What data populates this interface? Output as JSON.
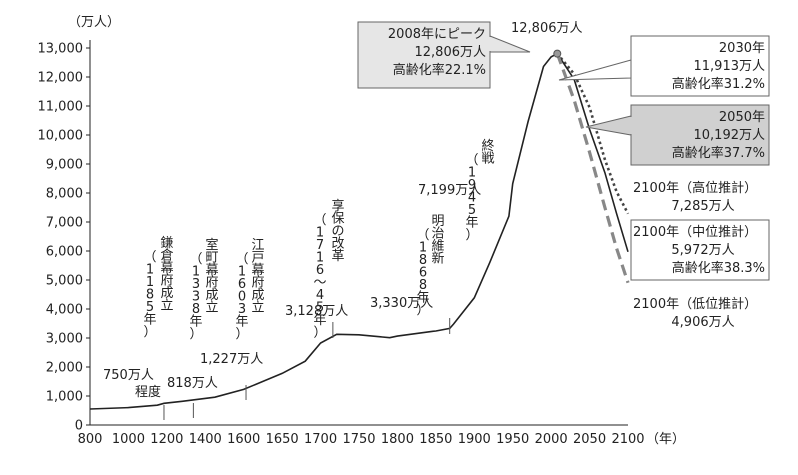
{
  "chart_data": {
    "type": "line",
    "y_unit": "（万人）",
    "x_unit": "（年）",
    "xlim": [
      800,
      2100
    ],
    "ylim": [
      0,
      13000
    ],
    "x_ticks": [
      800,
      1000,
      1200,
      1400,
      1600,
      1650,
      1700,
      1750,
      1800,
      1850,
      1900,
      1950,
      2000,
      2050,
      2100
    ],
    "x_tick_labels": [
      "800",
      "1000",
      "1200",
      "1400",
      "1600",
      "1650",
      "1700",
      "1750",
      "1800",
      "1850",
      "1900",
      "1950",
      "2000",
      "2050",
      "2100"
    ],
    "y_ticks": [
      0,
      1000,
      2000,
      3000,
      4000,
      5000,
      6000,
      7000,
      8000,
      9000,
      10000,
      11000,
      12000,
      13000
    ],
    "y_tick_labels": [
      "0",
      "1,000",
      "2,000",
      "3,000",
      "4,000",
      "5,000",
      "6,000",
      "7,000",
      "8,000",
      "9,000",
      "10,000",
      "11,000",
      "12,000",
      "13,000"
    ],
    "historical": [
      [
        800,
        551
      ],
      [
        1000,
        600
      ],
      [
        1150,
        684
      ],
      [
        1185,
        750
      ],
      [
        1280,
        818
      ],
      [
        1450,
        960
      ],
      [
        1600,
        1227
      ],
      [
        1650,
        1781
      ],
      [
        1680,
        2200
      ],
      [
        1700,
        2828
      ],
      [
        1721,
        3128
      ],
      [
        1750,
        3110
      ],
      [
        1790,
        3010
      ],
      [
        1800,
        3065
      ],
      [
        1846,
        3230
      ],
      [
        1850,
        3240
      ],
      [
        1868,
        3330
      ],
      [
        1873,
        3480
      ],
      [
        1900,
        4385
      ],
      [
        1920,
        5596
      ],
      [
        1945,
        7199
      ],
      [
        1950,
        8320
      ],
      [
        1970,
        10467
      ],
      [
        1990,
        12361
      ],
      [
        2000,
        12693
      ],
      [
        2008,
        12806
      ]
    ],
    "series": [
      {
        "name": "",
        "style": "dotted",
        "color": "#444444",
        "values": [
          [
            2008,
            12806
          ],
          [
            2030,
            12100
          ],
          [
            2050,
            10950
          ],
          [
            2070,
            9150
          ],
          [
            2085,
            8050
          ],
          [
            2100,
            7285
          ]
        ]
      },
      {
        "name": "",
        "style": "solid",
        "color": "#222222",
        "values": [
          [
            2008,
            12806
          ],
          [
            2030,
            11913
          ],
          [
            2050,
            10192
          ],
          [
            2070,
            8700
          ],
          [
            2085,
            7300
          ],
          [
            2100,
            5972
          ]
        ]
      },
      {
        "name": "",
        "style": "dashed",
        "color": "#888888",
        "values": [
          [
            2008,
            12806
          ],
          [
            2030,
            11200
          ],
          [
            2050,
            9400
          ],
          [
            2070,
            7500
          ],
          [
            2085,
            6100
          ],
          [
            2100,
            4906
          ]
        ]
      }
    ],
    "annotations": {
      "peak_box": [
        "2008年にピーク",
        "12,806万人",
        "高齢化率22.1%"
      ],
      "peak_top": "12,806万人",
      "y2030": [
        "2030年",
        "11,913万人",
        "高齢化率31.2%"
      ],
      "y2050": [
        "2050年",
        "10,192万人",
        "高齢化率37.7%"
      ],
      "high": [
        "2100年（高位推計）",
        "7,285万人"
      ],
      "mid": [
        "2100年（中位推計）",
        "5,972万人",
        "高齢化率38.3%"
      ],
      "low": [
        "2100年（低位推計）",
        "4,906万人"
      ],
      "kamakura": "鎌倉幕府成立（1185年）",
      "muromachi": "室町幕府成立（1338年）",
      "edo": "江戸幕府成立（1603年）",
      "kyoho": "享保の改革（1716〜45年）",
      "meiji": "明治維新（1868年）",
      "shusen": "終戦（1945年）",
      "v750": "750万人",
      "v750b": "程度",
      "v818": "818万人",
      "v1227": "1,227万人",
      "v3128": "3,128万人",
      "v3330": "3,330万人",
      "v7199": "7,199万人"
    }
  }
}
